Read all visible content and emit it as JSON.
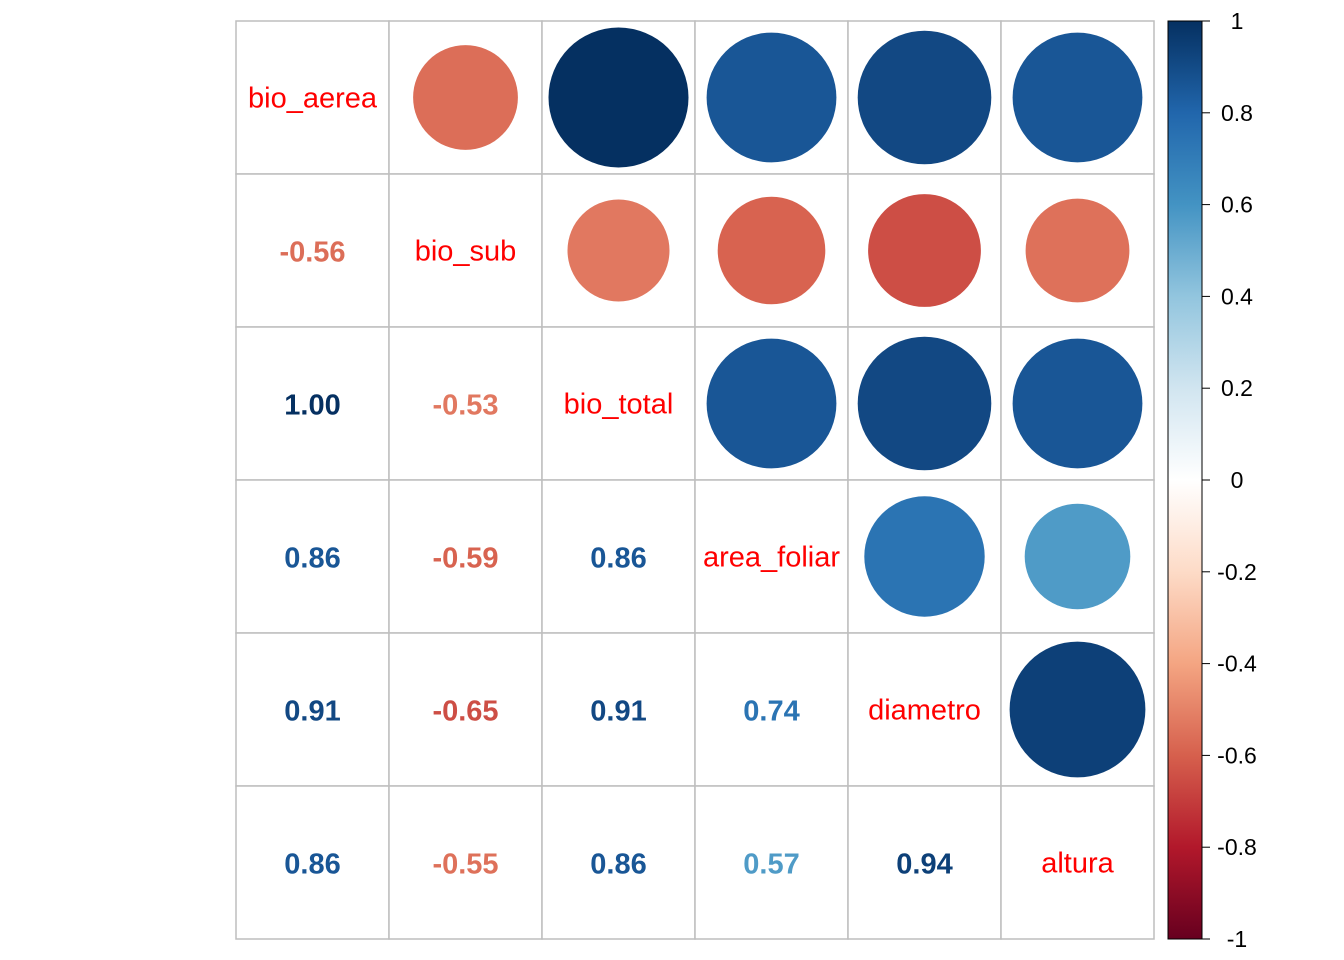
{
  "chart_data": {
    "type": "heatmap",
    "title": "",
    "variables": [
      "bio_aerea",
      "bio_sub",
      "bio_total",
      "area_foliar",
      "diametro",
      "altura"
    ],
    "matrix": [
      [
        1.0,
        -0.56,
        1.0,
        0.86,
        0.91,
        0.86
      ],
      [
        -0.56,
        1.0,
        -0.53,
        -0.59,
        -0.65,
        -0.55
      ],
      [
        1.0,
        -0.53,
        1.0,
        0.86,
        0.91,
        0.86
      ],
      [
        0.86,
        -0.59,
        0.86,
        1.0,
        0.74,
        0.57
      ],
      [
        0.91,
        -0.65,
        0.91,
        0.74,
        1.0,
        0.94
      ],
      [
        0.86,
        -0.55,
        0.86,
        0.57,
        0.94,
        1.0
      ]
    ],
    "lower_labels": [
      [
        "-0.56"
      ],
      [
        "1.00",
        "-0.53"
      ],
      [
        "0.86",
        "-0.59",
        "0.86"
      ],
      [
        "0.91",
        "-0.65",
        "0.91",
        "0.74"
      ],
      [
        "0.86",
        "-0.55",
        "0.86",
        "0.57",
        "0.94"
      ]
    ],
    "upper_method": "circle",
    "lower_method": "number",
    "diagonal": "variable names",
    "colorbar": {
      "range": [
        -1,
        1
      ],
      "ticks": [
        "1",
        "0.8",
        "0.6",
        "0.4",
        "0.2",
        "0",
        "-0.2",
        "-0.4",
        "-0.6",
        "-0.8",
        "-1"
      ],
      "colors": [
        "#67001F",
        "#B2182B",
        "#D6604D",
        "#F4A582",
        "#FDDBC7",
        "#FFFFFF",
        "#D1E5F0",
        "#92C5DE",
        "#4393C3",
        "#2166AC",
        "#053061"
      ]
    },
    "label_color": "#FF0000",
    "grid_color": "#BEBEBE"
  }
}
